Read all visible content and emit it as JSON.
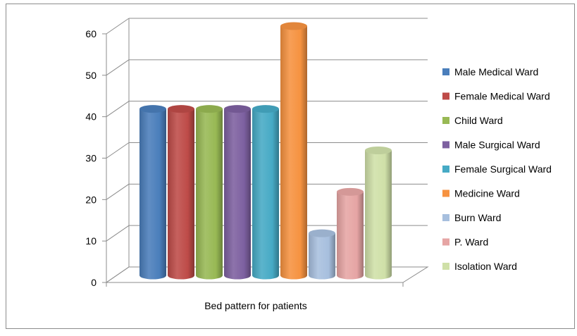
{
  "chart_data": {
    "type": "bar",
    "style": "3d-cylinder",
    "title": "",
    "xlabel": "Bed pattern for patients",
    "ylabel": "",
    "ylim": [
      0,
      60
    ],
    "yticks": [
      "0",
      "10",
      "20",
      "30",
      "40",
      "50",
      "60"
    ],
    "grid": true,
    "legend_position": "right",
    "categories": [
      "Bed pattern for patients"
    ],
    "series": [
      {
        "name": "Male Medical Ward",
        "values": [
          40
        ],
        "color": "#4a7ebb"
      },
      {
        "name": "Female Medical Ward",
        "values": [
          40
        ],
        "color": "#be4b48"
      },
      {
        "name": "Child Ward",
        "values": [
          40
        ],
        "color": "#98b954"
      },
      {
        "name": "Male Surgical Ward",
        "values": [
          40
        ],
        "color": "#7d60a0"
      },
      {
        "name": "Female Surgical Ward",
        "values": [
          40
        ],
        "color": "#46aac5"
      },
      {
        "name": "Medicine Ward",
        "values": [
          60
        ],
        "color": "#f69240"
      },
      {
        "name": "Burn Ward",
        "values": [
          10
        ],
        "color": "#a7bfde"
      },
      {
        "name": "P. Ward",
        "values": [
          20
        ],
        "color": "#e6a5a4"
      },
      {
        "name": "Isolation Ward",
        "values": [
          30
        ],
        "color": "#cfe0a8"
      }
    ]
  }
}
